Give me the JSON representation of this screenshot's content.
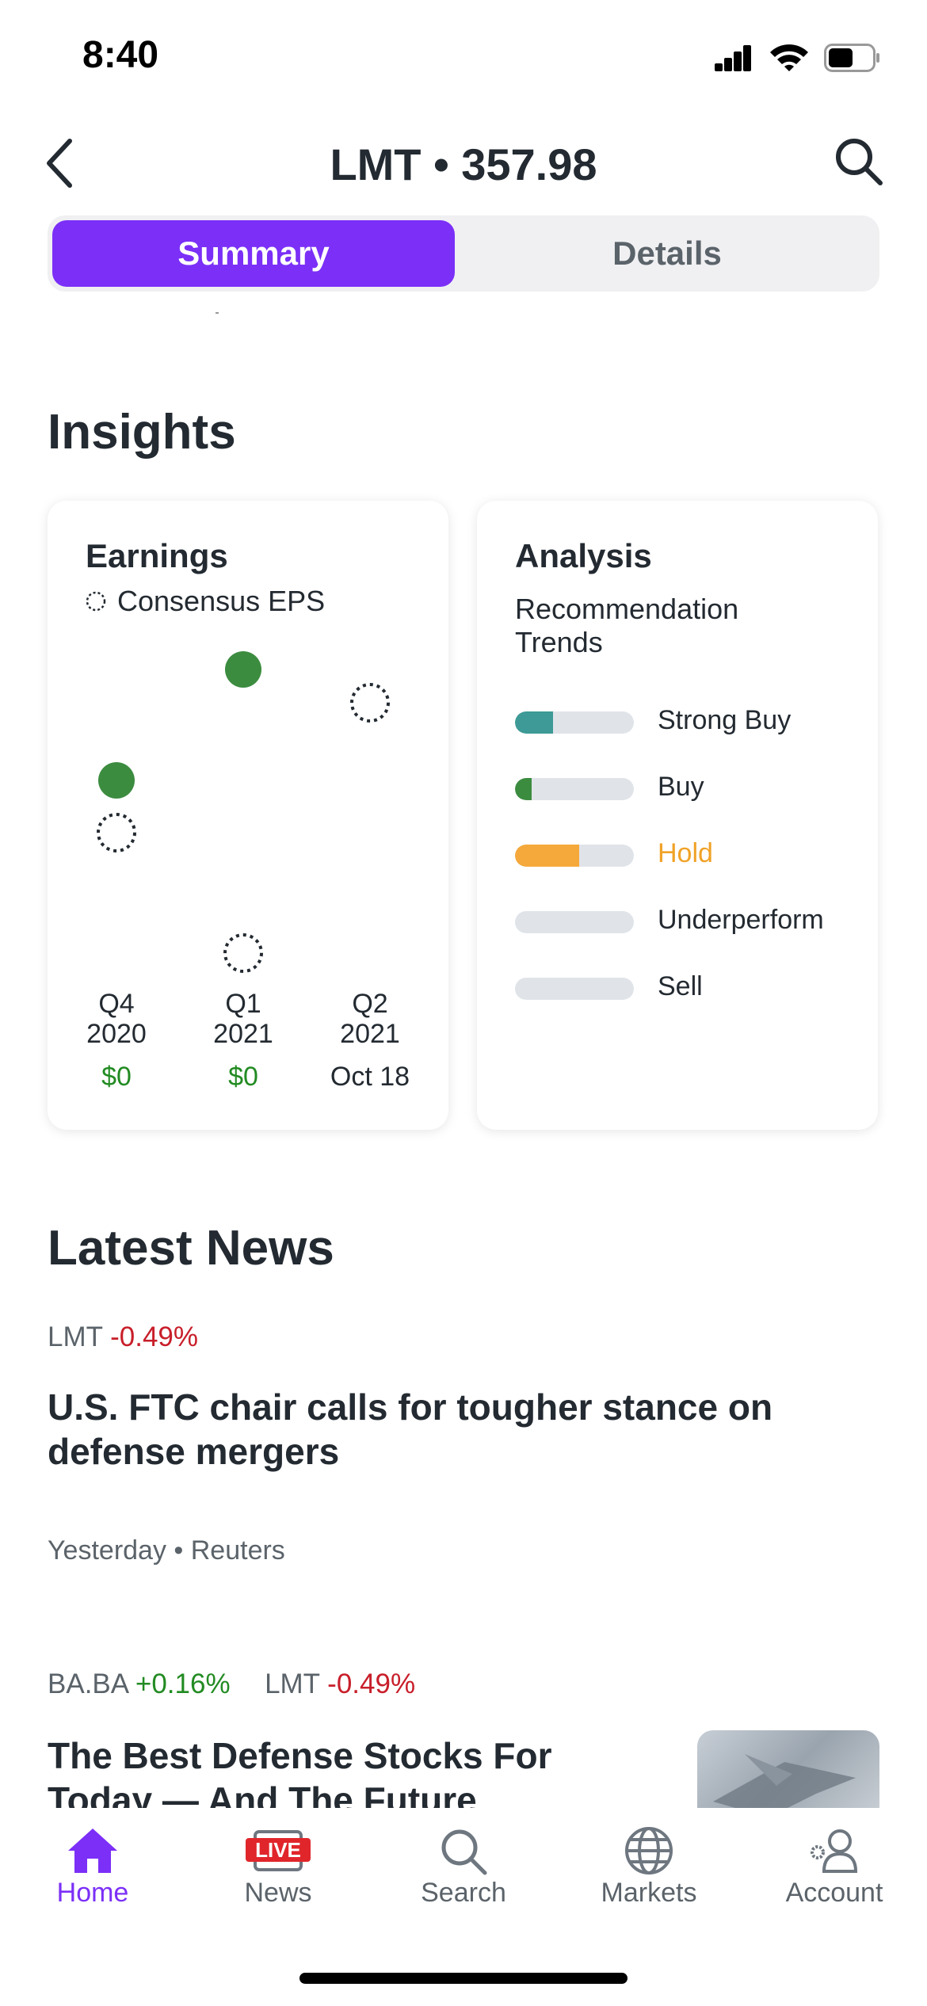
{
  "status_bar": {
    "time": "8:40"
  },
  "header": {
    "title": "LMT • 357.98"
  },
  "segments": {
    "summary": "Summary",
    "details": "Details"
  },
  "insights": {
    "title": "Insights",
    "earnings": {
      "title": "Earnings",
      "legend": "Consensus EPS",
      "quarters": [
        {
          "q": "Q4",
          "year": "2020",
          "value": "$0"
        },
        {
          "q": "Q1",
          "year": "2021",
          "value": "$0"
        },
        {
          "q": "Q2",
          "year": "2021",
          "value": "Oct 18"
        }
      ]
    },
    "analysis": {
      "title": "Analysis",
      "subtitle": "Recommendation Trends",
      "rows": [
        {
          "label": "Strong Buy",
          "fraction": 0.32,
          "color": "#3d9a96"
        },
        {
          "label": "Buy",
          "fraction": 0.14,
          "color": "#3c8c40"
        },
        {
          "label": "Hold",
          "fraction": 0.54,
          "color": "#f5a93b"
        },
        {
          "label": "Underperform",
          "fraction": 0,
          "color": "#e0e4e9"
        },
        {
          "label": "Sell",
          "fraction": 0,
          "color": "#e0e4e9"
        }
      ],
      "hold_color": "#f0a227"
    }
  },
  "news": {
    "title": "Latest News",
    "items": [
      {
        "tickers": [
          {
            "symbol": "LMT",
            "change": "-0.49%"
          }
        ],
        "headline": "U.S. FTC chair calls for tougher stance on defense mergers",
        "meta": "Yesterday • Reuters"
      },
      {
        "tickers": [
          {
            "symbol": "BA.BA",
            "change": "+0.16%"
          },
          {
            "symbol": "LMT",
            "change": "-0.49%"
          }
        ],
        "headline": "The Best Defense Stocks For Today — And The Future"
      }
    ]
  },
  "tabbar": {
    "home": "Home",
    "news": "News",
    "live_badge": "LIVE",
    "search": "Search",
    "markets": "Markets",
    "account": "Account"
  },
  "colors": {
    "accent": "#7b2ff7",
    "positive": "#228b22",
    "negative": "#c81e2a",
    "dot": "#3c8c40"
  }
}
